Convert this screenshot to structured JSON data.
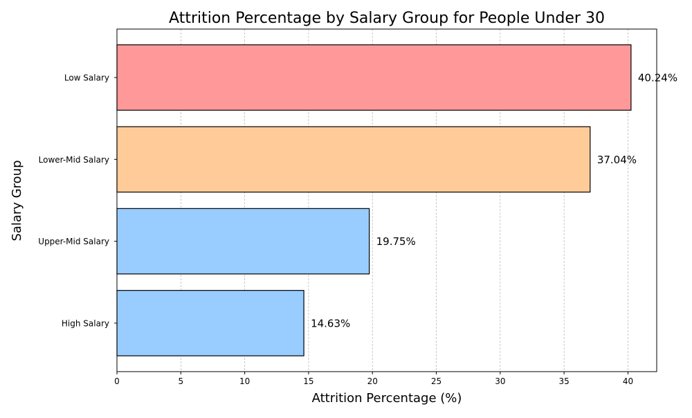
{
  "chart_data": {
    "type": "bar",
    "orientation": "horizontal",
    "title": "Attrition Percentage by Salary Group for People Under 30",
    "xlabel": "Attrition Percentage (%)",
    "ylabel": "Salary Group",
    "categories": [
      "Low Salary",
      "Lower-Mid Salary",
      "Upper-Mid Salary",
      "High Salary"
    ],
    "values": [
      40.24,
      37.04,
      19.75,
      14.63
    ],
    "data_labels": [
      "40.24%",
      "37.04%",
      "19.75%",
      "14.63%"
    ],
    "bar_colors": [
      "#ff9999",
      "#ffcc99",
      "#99ccff",
      "#99ccff"
    ],
    "bar_edge_color": "#000000",
    "xlim": [
      0,
      42.25
    ],
    "xticks": [
      0,
      5,
      10,
      15,
      20,
      25,
      30,
      35,
      40
    ],
    "grid": "vertical dashed",
    "grid_color": "#b0b0b0"
  }
}
